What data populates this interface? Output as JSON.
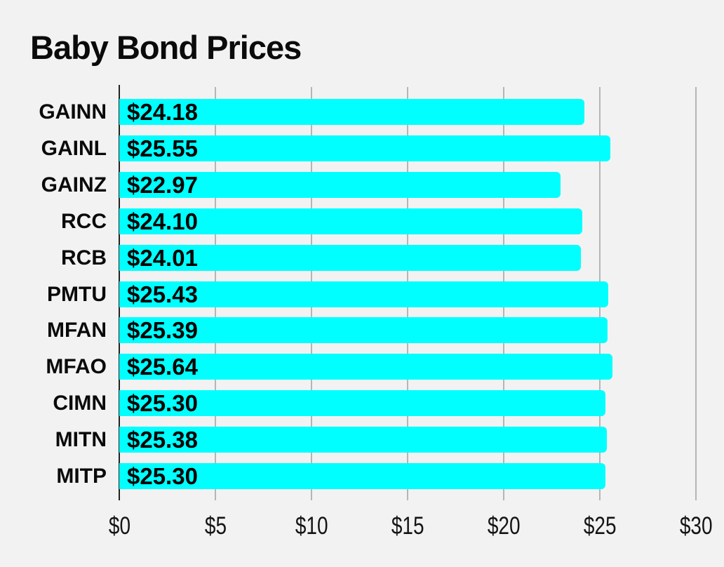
{
  "chart_data": {
    "type": "bar",
    "orientation": "horizontal",
    "title": "Baby Bond Prices",
    "categories": [
      "GAINN",
      "GAINL",
      "GAINZ",
      "RCC",
      "RCB",
      "PMTU",
      "MFAN",
      "MFAO",
      "CIMN",
      "MITN",
      "MITP"
    ],
    "values": [
      24.18,
      25.55,
      22.97,
      24.1,
      24.01,
      25.43,
      25.39,
      25.64,
      25.3,
      25.38,
      25.3
    ],
    "value_labels": [
      "$24.18",
      "$25.55",
      "$22.97",
      "$24.10",
      "$24.01",
      "$25.43",
      "$25.39",
      "$25.64",
      "$25.30",
      "$25.38",
      "$25.30"
    ],
    "xlabel": "",
    "ylabel": "",
    "xlim": [
      0,
      31.5
    ],
    "x_ticks": [
      0,
      5,
      10,
      15,
      20,
      25,
      30
    ],
    "x_tick_labels": [
      "$0",
      "$5",
      "$10",
      "$15",
      "$20",
      "$25",
      "$30"
    ],
    "grid": "vertical",
    "legend": "none",
    "colors": {
      "bar": "#00ffff",
      "background": "#f2f2f2",
      "gridline": "#b5b5b5",
      "axis": "#222222",
      "text": "#000000"
    }
  }
}
